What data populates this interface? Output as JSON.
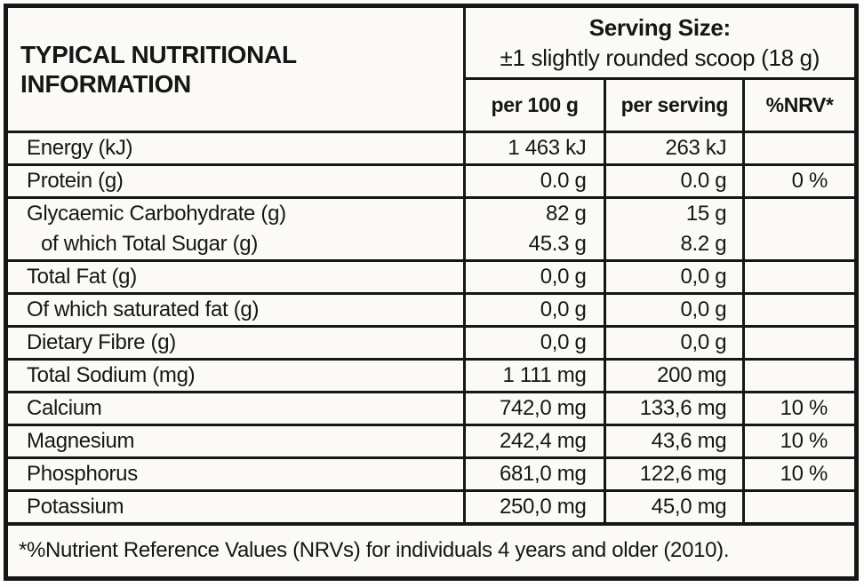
{
  "meta": {
    "background_color": "#fbfaf7",
    "ink_color": "#161616"
  },
  "header": {
    "title": "TYPICAL NUTRITIONAL INFORMATION",
    "serving_size_label": "Serving Size:",
    "serving_size_value": "±1 slightly rounded scoop (18 g)"
  },
  "columns": {
    "per_100g": "per 100 g",
    "per_serving": "per serving",
    "nrv": "%NRV*"
  },
  "rows": [
    {
      "label": "Energy (kJ)",
      "per_100g": "1 463 kJ",
      "per_serving": "263 kJ",
      "nrv": ""
    },
    {
      "label": "Protein (g)",
      "per_100g": "0.0 g",
      "per_serving": "0.0 g",
      "nrv": "0 %"
    },
    {
      "label": "Glycaemic Carbohydrate (g)",
      "per_100g": "82 g",
      "per_serving": "15 g",
      "nrv": ""
    },
    {
      "label": "of which Total Sugar (g)",
      "per_100g": "45.3 g",
      "per_serving": "8.2 g",
      "nrv": ""
    },
    {
      "label": "Total Fat (g)",
      "per_100g": "0,0 g",
      "per_serving": "0,0 g",
      "nrv": ""
    },
    {
      "label": "Of which saturated fat (g)",
      "per_100g": "0,0 g",
      "per_serving": "0,0 g",
      "nrv": ""
    },
    {
      "label": "Dietary Fibre (g)",
      "per_100g": "0,0 g",
      "per_serving": "0,0 g",
      "nrv": ""
    },
    {
      "label": "Total Sodium (mg)",
      "per_100g": "1 111 mg",
      "per_serving": "200 mg",
      "nrv": ""
    },
    {
      "label": "Calcium",
      "per_100g": "742,0 mg",
      "per_serving": "133,6 mg",
      "nrv": "10 %"
    },
    {
      "label": "Magnesium",
      "per_100g": "242,4 mg",
      "per_serving": "43,6 mg",
      "nrv": "10 %"
    },
    {
      "label": "Phosphorus",
      "per_100g": "681,0 mg",
      "per_serving": "122,6 mg",
      "nrv": "10 %"
    },
    {
      "label": "Potassium",
      "per_100g": "250,0 mg",
      "per_serving": "45,0 mg",
      "nrv": ""
    }
  ],
  "footnote": "*%Nutrient Reference Values (NRVs) for individuals 4 years and older (2010)."
}
